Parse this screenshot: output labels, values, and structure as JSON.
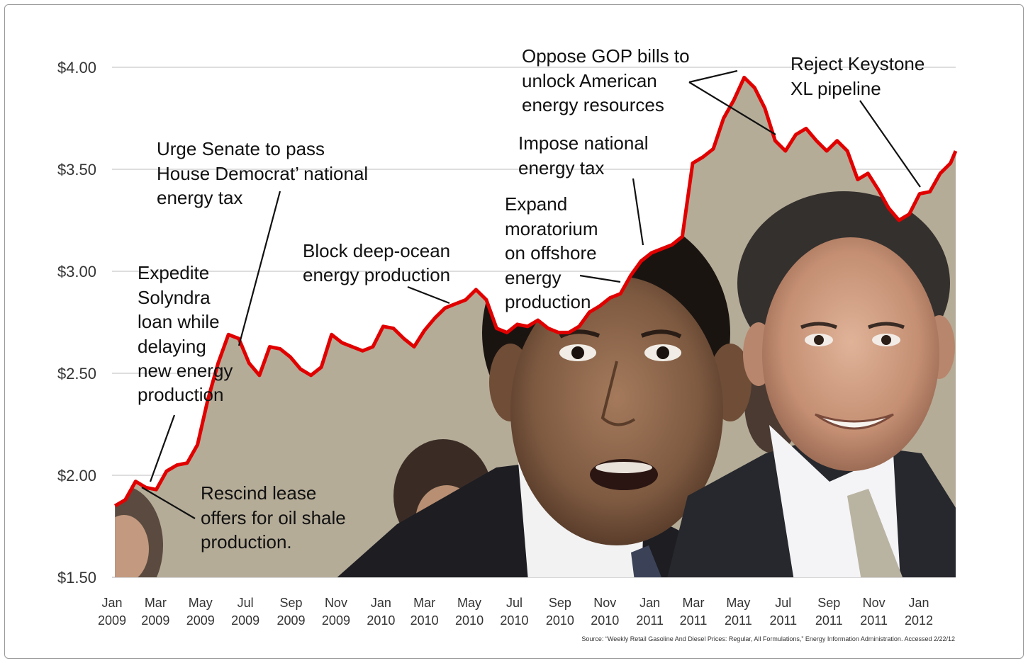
{
  "chart_data": {
    "type": "area",
    "title": "",
    "xlabel": "",
    "ylabel": "",
    "ylim": [
      1.5,
      4.0
    ],
    "y_ticks": [
      "$1.50",
      "$2.00",
      "$2.50",
      "$3.00",
      "$3.50",
      "$4.00"
    ],
    "y_tick_values": [
      1.5,
      2.0,
      2.5,
      3.0,
      3.5,
      4.0
    ],
    "x_ticks": [
      [
        "Jan",
        "2009"
      ],
      [
        "Mar",
        "2009"
      ],
      [
        "May",
        "2009"
      ],
      [
        "Jul",
        "2009"
      ],
      [
        "Sep",
        "2009"
      ],
      [
        "Nov",
        "2009"
      ],
      [
        "Jan",
        "2010"
      ],
      [
        "Mar",
        "2010"
      ],
      [
        "May",
        "2010"
      ],
      [
        "Jul",
        "2010"
      ],
      [
        "Sep",
        "2010"
      ],
      [
        "Nov",
        "2010"
      ],
      [
        "Jan",
        "2011"
      ],
      [
        "Mar",
        "2011"
      ],
      [
        "May",
        "2011"
      ],
      [
        "Jul",
        "2011"
      ],
      [
        "Sep",
        "2011"
      ],
      [
        "Nov",
        "2011"
      ],
      [
        "Jan",
        "2012"
      ]
    ],
    "grid": true,
    "line_color": "#e10000",
    "fill_color": "#b5ac98",
    "series": [
      {
        "x": [
          "2009-01-05",
          "2009-01-19",
          "2009-02-02",
          "2009-02-16",
          "2009-03-02",
          "2009-03-16",
          "2009-03-30",
          "2009-04-13",
          "2009-04-27",
          "2009-05-11",
          "2009-05-25",
          "2009-06-08",
          "2009-06-22",
          "2009-07-06",
          "2009-07-20",
          "2009-08-03",
          "2009-08-17",
          "2009-08-31",
          "2009-09-14",
          "2009-09-28",
          "2009-10-12",
          "2009-10-26",
          "2009-11-09",
          "2009-11-23",
          "2009-12-07",
          "2009-12-21",
          "2010-01-04",
          "2010-01-18",
          "2010-02-01",
          "2010-02-15",
          "2010-03-01",
          "2010-03-15",
          "2010-03-29",
          "2010-04-12",
          "2010-04-26",
          "2010-05-10",
          "2010-05-24",
          "2010-06-07",
          "2010-06-21",
          "2010-07-05",
          "2010-07-19",
          "2010-08-02",
          "2010-08-16",
          "2010-08-30",
          "2010-09-13",
          "2010-09-27",
          "2010-10-11",
          "2010-10-25",
          "2010-11-08",
          "2010-11-22",
          "2010-12-06",
          "2010-12-20",
          "2011-01-03",
          "2011-01-17",
          "2011-01-31",
          "2011-02-14",
          "2011-02-28",
          "2011-03-14",
          "2011-03-28",
          "2011-04-11",
          "2011-04-25",
          "2011-05-09",
          "2011-05-23",
          "2011-06-06",
          "2011-06-20",
          "2011-07-04",
          "2011-07-18",
          "2011-08-01",
          "2011-08-15",
          "2011-08-29",
          "2011-09-12",
          "2011-09-26",
          "2011-10-10",
          "2011-10-24",
          "2011-11-07",
          "2011-11-21",
          "2011-12-05",
          "2011-12-19",
          "2012-01-02",
          "2012-01-16",
          "2012-01-30",
          "2012-02-13",
          "2012-02-20"
        ],
        "values": [
          1.85,
          1.88,
          1.97,
          1.94,
          1.93,
          2.02,
          2.05,
          2.06,
          2.15,
          2.37,
          2.55,
          2.69,
          2.67,
          2.55,
          2.49,
          2.63,
          2.62,
          2.58,
          2.52,
          2.49,
          2.53,
          2.69,
          2.65,
          2.63,
          2.61,
          2.63,
          2.73,
          2.72,
          2.67,
          2.63,
          2.71,
          2.77,
          2.82,
          2.84,
          2.86,
          2.91,
          2.86,
          2.72,
          2.7,
          2.74,
          2.73,
          2.76,
          2.72,
          2.7,
          2.7,
          2.73,
          2.8,
          2.83,
          2.87,
          2.89,
          2.98,
          3.05,
          3.09,
          3.11,
          3.13,
          3.17,
          3.53,
          3.56,
          3.6,
          3.75,
          3.84,
          3.95,
          3.9,
          3.8,
          3.64,
          3.59,
          3.67,
          3.7,
          3.64,
          3.59,
          3.64,
          3.59,
          3.45,
          3.48,
          3.4,
          3.31,
          3.25,
          3.28,
          3.38,
          3.39,
          3.48,
          3.53,
          3.59
        ]
      }
    ],
    "annotations": [
      {
        "lines": [
          "Expedite",
          "Solyndra",
          "loan while",
          "delaying",
          "new energy",
          "production"
        ]
      },
      {
        "lines": [
          "Urge Senate to pass",
          "House Democrat’ national",
          "energy tax"
        ]
      },
      {
        "lines": [
          "Rescind lease",
          "offers for oil shale",
          "production."
        ]
      },
      {
        "lines": [
          "Block deep-ocean",
          "energy production"
        ]
      },
      {
        "lines": [
          "Oppose GOP bills to",
          "unlock American",
          "energy resources"
        ]
      },
      {
        "lines": [
          "Reject Keystone",
          "XL pipeline"
        ]
      },
      {
        "lines": [
          "Impose national",
          "energy tax"
        ]
      },
      {
        "lines": [
          "Expand",
          "moratorium",
          "on offshore",
          "energy",
          "production"
        ]
      }
    ],
    "source": "Source: “Weekly Retail Gasoline And Diesel Prices: Regular, All Formulations,” Energy Information Administration. Accessed 2/22/12"
  }
}
